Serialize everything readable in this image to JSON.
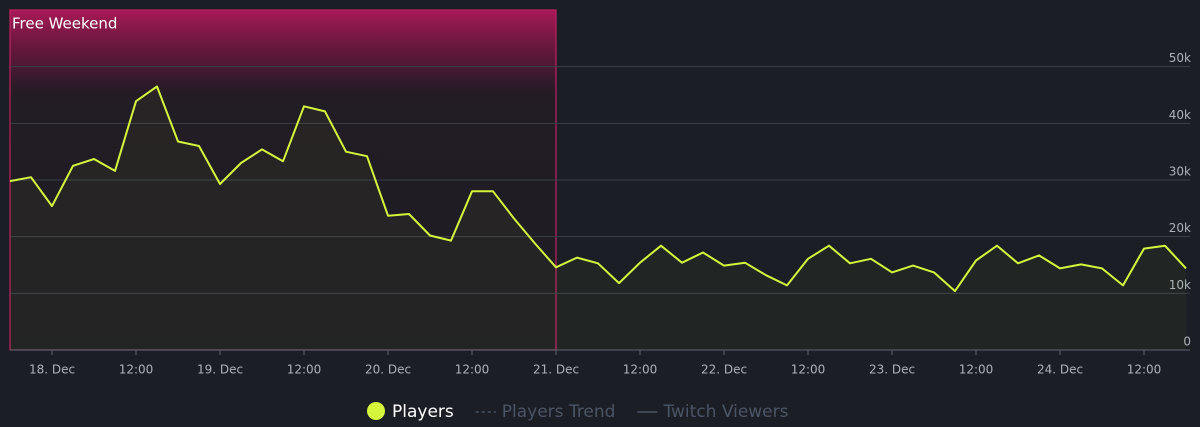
{
  "chart_data": {
    "type": "line",
    "categories": [
      null,
      null,
      "18. Dec",
      null,
      null,
      null,
      "12:00",
      null,
      null,
      null,
      "19. Dec",
      null,
      null,
      null,
      "12:00",
      null,
      null,
      null,
      "20. Dec",
      null,
      null,
      null,
      "12:00",
      null,
      null,
      null,
      "21. Dec",
      null,
      null,
      null,
      "12:00",
      null,
      null,
      null,
      "22. Dec",
      null,
      null,
      null,
      "12:00",
      null,
      null,
      null,
      "23. Dec",
      null,
      null,
      null,
      "12:00",
      null,
      null,
      null,
      "24. Dec",
      null,
      null,
      null,
      "12:00",
      null,
      null
    ],
    "series": [
      {
        "name": "Players",
        "color": "#d4f53c",
        "values": [
          29800,
          30500,
          25400,
          32500,
          33700,
          31600,
          43900,
          46500,
          36800,
          36000,
          29300,
          33000,
          35400,
          33300,
          43000,
          42100,
          35000,
          34200,
          23700,
          24000,
          20200,
          19300,
          28000,
          28000,
          23200,
          18800,
          14600,
          16300,
          15300,
          11800,
          15400,
          18400,
          15400,
          17200,
          14900,
          15400,
          13200,
          11400,
          16100,
          18400,
          15300,
          16100,
          13700,
          14900,
          13700,
          10400,
          15800,
          18400,
          15300,
          16700,
          14400,
          15100,
          14400,
          11400,
          17900,
          18400,
          14400
        ]
      }
    ],
    "legend_extra": [
      "Players Trend",
      "Twitch Viewers"
    ],
    "annotation": {
      "text": "Free Weekend",
      "end": "21. Dec"
    },
    "ylim": [
      0,
      60000
    ],
    "yticks": [
      0,
      {
        "value": 10000,
        "label": "10k"
      },
      {
        "value": 20000,
        "label": "20k"
      },
      {
        "value": 30000,
        "label": "30k"
      },
      {
        "value": 40000,
        "label": "40k"
      },
      {
        "value": 50000,
        "label": "50k"
      }
    ],
    "grid": true
  }
}
